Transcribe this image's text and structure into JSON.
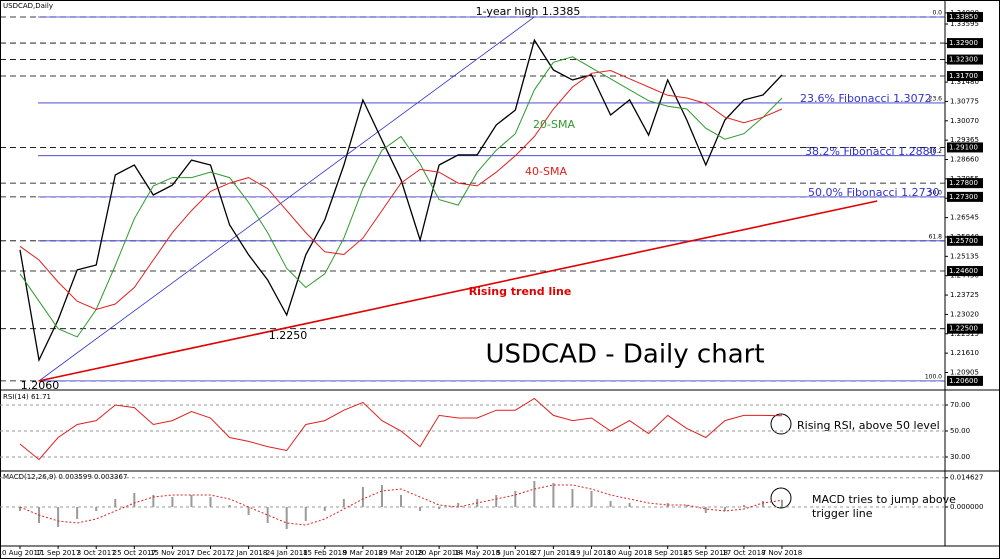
{
  "chart_data": [
    {
      "type": "line",
      "title": "USDCAD,Daily",
      "categories": [
        "10 Aug 2017",
        null,
        "11 Sep 2017",
        null,
        "3 Oct 2017",
        null,
        "25 Oct 2017",
        null,
        "15 Nov 2017",
        null,
        "7 Dec 2017",
        null,
        "2 Jan 2018",
        null,
        "24 Jan 2018",
        null,
        "15 Feb 2018",
        null,
        "9 Mar 2018",
        null,
        "29 Mar 2018",
        null,
        "20 Apr 2018",
        null,
        "14 May 2018",
        null,
        "5 Jun 2018",
        null,
        "27 Jun 2018",
        null,
        "19 Jul 2018",
        null,
        "10 Aug 2018",
        null,
        "3 Sep 2018",
        null,
        "25 Sep 2018",
        null,
        "17 Oct 2018",
        null,
        "7 Nov 2018"
      ],
      "series": [
        {
          "color": "#000000",
          "values": [
            1.2537,
            1.2136,
            1.2282,
            1.2464,
            1.2482,
            1.281,
            1.2846,
            1.2737,
            1.2773,
            1.2864,
            1.2846,
            1.2628,
            1.2519,
            1.2428,
            1.23,
            1.2519,
            1.2646,
            1.2846,
            1.3083,
            1.2937,
            1.2792,
            1.2573,
            1.2846,
            1.2883,
            1.2883,
            1.2992,
            1.3046,
            1.3301,
            1.3192,
            1.3156,
            1.3174,
            1.3028,
            1.3083,
            1.2955,
            1.3156,
            1.301,
            1.2846,
            1.301,
            1.3083,
            1.3101,
            1.3174
          ]
        },
        {
          "name": "20-SMA",
          "color": "#2e9a2e",
          "values": [
            1.245,
            1.235,
            1.225,
            1.222,
            1.232,
            1.248,
            1.265,
            1.277,
            1.28,
            1.28,
            1.282,
            1.28,
            1.271,
            1.26,
            1.247,
            1.24,
            1.245,
            1.258,
            1.276,
            1.29,
            1.295,
            1.285,
            1.272,
            1.27,
            1.282,
            1.29,
            1.296,
            1.312,
            1.322,
            1.324,
            1.32,
            1.316,
            1.312,
            1.308,
            1.306,
            1.305,
            1.298,
            1.294,
            1.296,
            1.302,
            1.309
          ]
        },
        {
          "name": "40-SMA",
          "color": "#e02020",
          "values": [
            1.255,
            1.25,
            1.242,
            1.235,
            1.232,
            1.234,
            1.24,
            1.25,
            1.26,
            1.268,
            1.275,
            1.278,
            1.28,
            1.276,
            1.268,
            1.26,
            1.253,
            1.252,
            1.258,
            1.268,
            1.278,
            1.283,
            1.282,
            1.278,
            1.277,
            1.282,
            1.288,
            1.295,
            1.305,
            1.313,
            1.318,
            1.319,
            1.316,
            1.313,
            1.31,
            1.309,
            1.307,
            1.302,
            1.3,
            1.302,
            1.305
          ]
        }
      ],
      "ylim": [
        1.2045,
        1.3425
      ],
      "yticks": [
        {
          "value": 1.20905,
          "label": "1.20905"
        },
        {
          "value": 1.2161,
          "label": "1.21610"
        },
        {
          "value": 1.22315,
          "label": "1.22315"
        },
        {
          "value": 1.2302,
          "label": "1.23020"
        },
        {
          "value": 1.23725,
          "label": "1.23725"
        },
        {
          "value": 1.2443,
          "label": "1.24430"
        },
        {
          "value": 1.25135,
          "label": "1.25135"
        },
        {
          "value": 1.2584,
          "label": "1.25840"
        },
        {
          "value": 1.26545,
          "label": "1.26545"
        },
        {
          "value": 1.2725,
          "label": "1.27250"
        },
        {
          "value": 1.27955,
          "label": "1.27955"
        },
        {
          "value": 1.2866,
          "label": "1.28660"
        },
        {
          "value": 1.29365,
          "label": "1.29365"
        },
        {
          "value": 1.3007,
          "label": "1.30070"
        },
        {
          "value": 1.30775,
          "label": "1.30775"
        },
        {
          "value": 1.3148,
          "label": "1.31480"
        },
        {
          "value": 1.32185,
          "label": "1.32185"
        },
        {
          "value": 1.3289,
          "label": "1.32890"
        },
        {
          "value": 1.33595,
          "label": "1.33595"
        },
        {
          "value": 1.34,
          "label": "1.34000"
        }
      ],
      "levels": [
        {
          "value": 1.3385,
          "label": "1.33850"
        },
        {
          "value": 1.329,
          "label": "1.32900"
        },
        {
          "value": 1.323,
          "label": "1.32300"
        },
        {
          "value": 1.317,
          "label": "1.31700"
        },
        {
          "value": 1.291,
          "label": "1.29100"
        },
        {
          "value": 1.278,
          "label": "1.27800"
        },
        {
          "value": 1.273,
          "label": "1.27300"
        },
        {
          "value": 1.257,
          "label": "1.25700"
        },
        {
          "value": 1.246,
          "label": "1.24600"
        },
        {
          "value": 1.225,
          "label": "1.22500"
        },
        {
          "value": 1.206,
          "label": "1.20600"
        }
      ],
      "fib_levels": [
        {
          "value": 1.3385,
          "label": "0.0"
        },
        {
          "value": 1.3072,
          "label": "23.6"
        },
        {
          "value": 1.288,
          "label": "38.2"
        },
        {
          "value": 1.273,
          "label": "50.0"
        },
        {
          "value": 1.257,
          "label": "61.8"
        },
        {
          "value": 1.206,
          "label": "100.0"
        }
      ],
      "trend_lines": [
        {
          "color": "#3333cc",
          "x": [
            1,
            27
          ],
          "y": [
            1.206,
            1.3385
          ]
        },
        {
          "color": "#e00000",
          "x": [
            1,
            45
          ],
          "y": [
            1.206,
            1.2715
          ]
        }
      ],
      "annotations": [
        "1-year high 1.3385",
        "1.2250",
        "1.2060",
        "Rising trend line",
        "USDCAD - Daily chart",
        "23.6% Fibonacci 1.3072",
        "38.2% Fibonacci 1.2880",
        "50.0% Fibonacci 1.2730"
      ]
    },
    {
      "type": "line",
      "title": "RSI(14) 61.71",
      "series": [
        {
          "color": "#e02020",
          "values": [
            40,
            28,
            45,
            55,
            58,
            70,
            68,
            55,
            58,
            65,
            60,
            45,
            42,
            38,
            35,
            55,
            58,
            66,
            72,
            58,
            50,
            38,
            62,
            60,
            60,
            66,
            66,
            75,
            62,
            58,
            60,
            50,
            58,
            48,
            62,
            52,
            45,
            58,
            62,
            62,
            61.71
          ]
        }
      ],
      "ylim": [
        20,
        80
      ],
      "yticks": [
        {
          "value": 30,
          "label": "30.00"
        },
        {
          "value": 50,
          "label": "50.00"
        },
        {
          "value": 70,
          "label": "70.00"
        }
      ],
      "annotations": [
        "Rising RSI, above 50 level"
      ]
    },
    {
      "type": "macd",
      "title": "MACD(12,26,9) 0.003599 0.003367",
      "series": [
        {
          "color": "#9a9a9a",
          "values": [
            -0.002,
            -0.008,
            -0.01,
            -0.006,
            -0.002,
            0.004,
            0.007,
            0.006,
            0.005,
            0.006,
            0.005,
            0.001,
            -0.004,
            -0.008,
            -0.011,
            -0.007,
            -0.002,
            0.004,
            0.01,
            0.011,
            0.006,
            -0.002,
            -0.001,
            0.002,
            0.004,
            0.006,
            0.008,
            0.013,
            0.012,
            0.009,
            0.008,
            0.003,
            0.002,
            0.0,
            0.002,
            0.001,
            -0.003,
            -0.002,
            0.001,
            0.003,
            0.003599
          ]
        },
        {
          "color": "#e02020",
          "values": [
            0.0,
            -0.004,
            -0.007,
            -0.008,
            -0.006,
            -0.002,
            0.002,
            0.005,
            0.006,
            0.006,
            0.006,
            0.004,
            0.0,
            -0.004,
            -0.008,
            -0.009,
            -0.006,
            -0.001,
            0.004,
            0.008,
            0.009,
            0.005,
            0.001,
            0.0,
            0.002,
            0.004,
            0.006,
            0.009,
            0.011,
            0.011,
            0.009,
            0.006,
            0.004,
            0.002,
            0.001,
            0.001,
            -0.001,
            -0.002,
            -0.001,
            0.002,
            0.003367
          ]
        }
      ],
      "ylim": [
        -0.019,
        0.0165
      ],
      "yticks": [
        0.014627,
        {
          "value": 0,
          "label": "0.000000"
        }
      ],
      "annotations": [
        "MACD tries to jump above",
        "trigger line"
      ]
    }
  ]
}
